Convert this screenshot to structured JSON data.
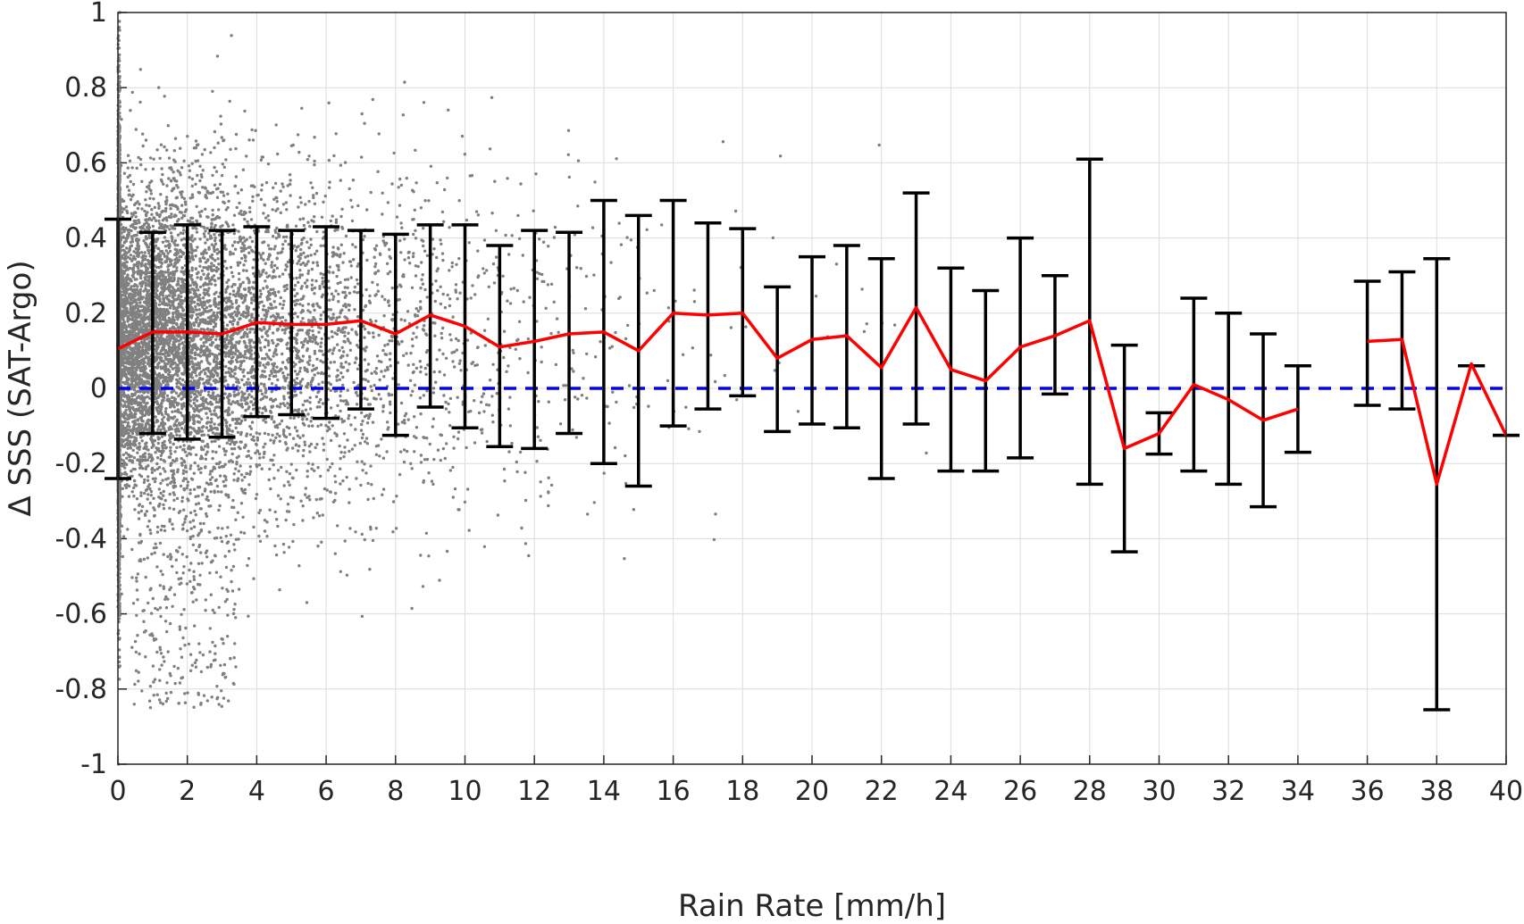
{
  "chart_data": {
    "type": "line",
    "xlabel": "Rain Rate [mm/h]",
    "ylabel": "Δ SSS (SAT-Argo)",
    "xlim": [
      0,
      40
    ],
    "ylim": [
      -1,
      1
    ],
    "grid": true,
    "x_ticks": [
      "0",
      "2",
      "4",
      "6",
      "8",
      "10",
      "12",
      "14",
      "16",
      "18",
      "20",
      "22",
      "24",
      "26",
      "28",
      "30",
      "32",
      "34",
      "36",
      "38",
      "40"
    ],
    "y_ticks": [
      "-1",
      "-0.8",
      "-0.6",
      "-0.4",
      "-0.2",
      "0",
      "0.2",
      "0.4",
      "0.6",
      "0.8",
      "1"
    ],
    "reference_line": {
      "y": 0,
      "style": "dashed",
      "color": "#0000ff"
    },
    "colors": {
      "mean": "#ff0000",
      "errorbar": "#000000",
      "scatter": "#808080",
      "grid": "#dcdcdc"
    },
    "errorbars": [
      {
        "x": 0,
        "low": -0.24,
        "high": 0.45
      },
      {
        "x": 1,
        "low": -0.12,
        "high": 0.415
      },
      {
        "x": 2,
        "low": -0.135,
        "high": 0.435
      },
      {
        "x": 3,
        "low": -0.13,
        "high": 0.42
      },
      {
        "x": 4,
        "low": -0.075,
        "high": 0.43
      },
      {
        "x": 5,
        "low": -0.07,
        "high": 0.42
      },
      {
        "x": 6,
        "low": -0.08,
        "high": 0.43
      },
      {
        "x": 7,
        "low": -0.055,
        "high": 0.42
      },
      {
        "x": 8,
        "low": -0.125,
        "high": 0.41
      },
      {
        "x": 9,
        "low": -0.05,
        "high": 0.435
      },
      {
        "x": 10,
        "low": -0.105,
        "high": 0.435
      },
      {
        "x": 11,
        "low": -0.155,
        "high": 0.38
      },
      {
        "x": 12,
        "low": -0.16,
        "high": 0.42
      },
      {
        "x": 13,
        "low": -0.12,
        "high": 0.415
      },
      {
        "x": 14,
        "low": -0.2,
        "high": 0.5
      },
      {
        "x": 15,
        "low": -0.26,
        "high": 0.46
      },
      {
        "x": 16,
        "low": -0.1,
        "high": 0.5
      },
      {
        "x": 17,
        "low": -0.055,
        "high": 0.44
      },
      {
        "x": 18,
        "low": -0.02,
        "high": 0.425
      },
      {
        "x": 19,
        "low": -0.115,
        "high": 0.27
      },
      {
        "x": 20,
        "low": -0.095,
        "high": 0.35
      },
      {
        "x": 21,
        "low": -0.105,
        "high": 0.38
      },
      {
        "x": 22,
        "low": -0.24,
        "high": 0.345
      },
      {
        "x": 23,
        "low": -0.095,
        "high": 0.52
      },
      {
        "x": 24,
        "low": -0.22,
        "high": 0.32
      },
      {
        "x": 25,
        "low": -0.22,
        "high": 0.26
      },
      {
        "x": 26,
        "low": -0.185,
        "high": 0.4
      },
      {
        "x": 27,
        "low": -0.015,
        "high": 0.3
      },
      {
        "x": 28,
        "low": -0.255,
        "high": 0.61
      },
      {
        "x": 29,
        "low": -0.435,
        "high": 0.115
      },
      {
        "x": 30,
        "low": -0.175,
        "high": -0.065
      },
      {
        "x": 31,
        "low": -0.22,
        "high": 0.24
      },
      {
        "x": 32,
        "low": -0.255,
        "high": 0.2
      },
      {
        "x": 33,
        "low": -0.315,
        "high": 0.145
      },
      {
        "x": 34,
        "low": -0.17,
        "high": 0.06
      },
      {
        "x": 36,
        "low": -0.045,
        "high": 0.285
      },
      {
        "x": 37,
        "low": -0.055,
        "high": 0.31
      },
      {
        "x": 38,
        "low": -0.855,
        "high": 0.345
      },
      {
        "x": 39,
        "low": 0.06,
        "high": 0.06
      },
      {
        "x": 40,
        "low": -0.125,
        "high": -0.125
      }
    ],
    "series": [
      {
        "segments": [
          [
            [
              0,
              0.105
            ],
            [
              1,
              0.15
            ],
            [
              2,
              0.15
            ],
            [
              3,
              0.145
            ],
            [
              4,
              0.175
            ],
            [
              5,
              0.17
            ],
            [
              6,
              0.17
            ],
            [
              7,
              0.18
            ],
            [
              8,
              0.145
            ],
            [
              9,
              0.195
            ],
            [
              10,
              0.165
            ],
            [
              11,
              0.11
            ],
            [
              12,
              0.125
            ],
            [
              13,
              0.145
            ],
            [
              14,
              0.15
            ],
            [
              15,
              0.1
            ],
            [
              16,
              0.2
            ],
            [
              17,
              0.195
            ],
            [
              18,
              0.2
            ],
            [
              19,
              0.08
            ],
            [
              20,
              0.13
            ],
            [
              21,
              0.14
            ],
            [
              22,
              0.055
            ],
            [
              23,
              0.215
            ],
            [
              24,
              0.05
            ],
            [
              25,
              0.02
            ],
            [
              26,
              0.11
            ],
            [
              27,
              0.14
            ],
            [
              28,
              0.18
            ],
            [
              29,
              -0.16
            ],
            [
              30,
              -0.12
            ],
            [
              31,
              0.01
            ],
            [
              32,
              -0.03
            ],
            [
              33,
              -0.085
            ],
            [
              34,
              -0.055
            ]
          ],
          [
            [
              36,
              0.125
            ],
            [
              37,
              0.13
            ],
            [
              38,
              -0.255
            ],
            [
              39,
              0.065
            ],
            [
              40,
              -0.125
            ]
          ]
        ]
      }
    ]
  }
}
